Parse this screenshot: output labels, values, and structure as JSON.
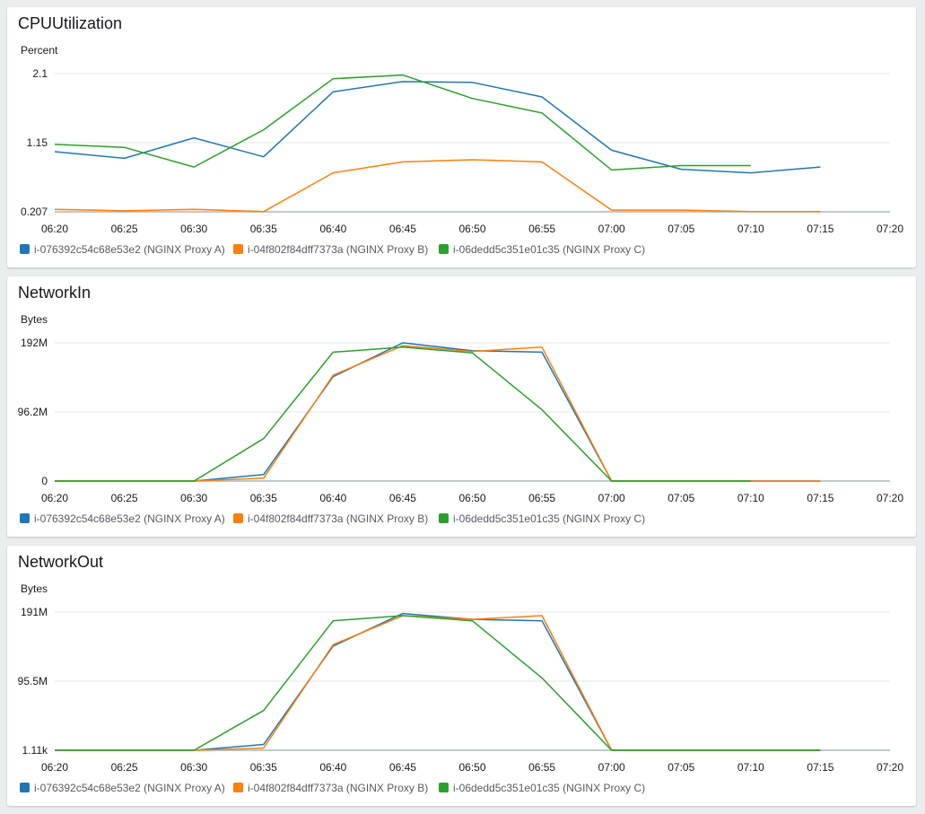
{
  "legend": [
    {
      "name": "i-076392c54c68e53e2 (NGINX Proxy A)",
      "color": "#1f77b4"
    },
    {
      "name": "i-04f802f84dff7373a (NGINX Proxy B)",
      "color": "#ff7f0e"
    },
    {
      "name": "i-06dedd5c351e01c35 (NGINX Proxy C)",
      "color": "#2ca02c"
    }
  ],
  "chart_data": [
    {
      "type": "line",
      "title": "CPUUtilization",
      "ylabel": "Percent",
      "xlabel": "",
      "x_ticks": [
        "06:20",
        "06:25",
        "06:30",
        "06:35",
        "06:40",
        "06:45",
        "06:50",
        "06:55",
        "07:00",
        "07:05",
        "07:10",
        "07:15",
        "07:20"
      ],
      "y_ticks": [
        "2.1",
        "1.15",
        "0.207"
      ],
      "ylim": [
        0.207,
        2.1
      ],
      "xlim": [
        0,
        60
      ],
      "series": [
        {
          "name": "i-076392c54c68e53e2 (NGINX Proxy A)",
          "color": "#1f77b4",
          "x": [
            0,
            5,
            10,
            15,
            20,
            25,
            30,
            35,
            40,
            45,
            50,
            55
          ],
          "values": [
            1.03,
            0.94,
            1.22,
            0.96,
            1.85,
            1.99,
            1.98,
            1.78,
            1.05,
            0.79,
            0.74,
            0.82
          ]
        },
        {
          "name": "i-04f802f84dff7373a (NGINX Proxy B)",
          "color": "#ff7f0e",
          "x": [
            0,
            5,
            10,
            15,
            20,
            25,
            30,
            35,
            40,
            45,
            50,
            55
          ],
          "values": [
            0.24,
            0.22,
            0.24,
            0.21,
            0.74,
            0.89,
            0.92,
            0.89,
            0.23,
            0.23,
            0.21,
            0.21
          ]
        },
        {
          "name": "i-06dedd5c351e01c35 (NGINX Proxy C)",
          "color": "#2ca02c",
          "x": [
            0,
            5,
            10,
            15,
            20,
            25,
            30,
            35,
            40,
            45,
            50
          ],
          "values": [
            1.13,
            1.09,
            0.82,
            1.33,
            2.03,
            2.08,
            1.76,
            1.56,
            0.78,
            0.84,
            0.84
          ]
        }
      ]
    },
    {
      "type": "line",
      "title": "NetworkIn",
      "ylabel": "Bytes",
      "xlabel": "",
      "x_ticks": [
        "06:20",
        "06:25",
        "06:30",
        "06:35",
        "06:40",
        "06:45",
        "06:50",
        "06:55",
        "07:00",
        "07:05",
        "07:10",
        "07:15",
        "07:20"
      ],
      "y_ticks": [
        "192M",
        "96.2M",
        "0"
      ],
      "ylim": [
        0,
        192
      ],
      "xlim": [
        0,
        60
      ],
      "series": [
        {
          "name": "i-076392c54c68e53e2 (NGINX Proxy A)",
          "color": "#1f77b4",
          "x": [
            0,
            5,
            10,
            15,
            20,
            25,
            30,
            35,
            40,
            45,
            50,
            55
          ],
          "values": [
            0,
            0,
            0,
            9,
            145,
            192,
            181,
            179,
            0,
            0,
            0,
            0
          ]
        },
        {
          "name": "i-04f802f84dff7373a (NGINX Proxy B)",
          "color": "#ff7f0e",
          "x": [
            0,
            5,
            10,
            15,
            20,
            25,
            30,
            35,
            40,
            45,
            50,
            55
          ],
          "values": [
            0,
            0,
            0,
            4,
            147,
            188,
            180,
            186,
            0,
            0,
            0,
            0
          ]
        },
        {
          "name": "i-06dedd5c351e01c35 (NGINX Proxy C)",
          "color": "#2ca02c",
          "x": [
            0,
            5,
            10,
            15,
            20,
            25,
            30,
            35,
            40,
            45,
            50
          ],
          "values": [
            0,
            0,
            0,
            59,
            179,
            186,
            178,
            99,
            0,
            0,
            0
          ]
        }
      ]
    },
    {
      "type": "line",
      "title": "NetworkOut",
      "ylabel": "Bytes",
      "xlabel": "",
      "x_ticks": [
        "06:20",
        "06:25",
        "06:30",
        "06:35",
        "06:40",
        "06:45",
        "06:50",
        "06:55",
        "07:00",
        "07:05",
        "07:10",
        "07:15",
        "07:20"
      ],
      "y_ticks": [
        "191M",
        "95.5M",
        "1.11k"
      ],
      "ylim": [
        0,
        191
      ],
      "xlim": [
        0,
        60
      ],
      "series": [
        {
          "name": "i-076392c54c68e53e2 (NGINX Proxy A)",
          "color": "#1f77b4",
          "x": [
            0,
            5,
            10,
            15,
            20,
            25,
            30,
            35,
            40,
            45,
            50,
            55
          ],
          "values": [
            0,
            0,
            0,
            8,
            144,
            189,
            181,
            179,
            0,
            0,
            0,
            0
          ]
        },
        {
          "name": "i-04f802f84dff7373a (NGINX Proxy B)",
          "color": "#ff7f0e",
          "x": [
            0,
            5,
            10,
            15,
            20,
            25,
            30,
            35,
            40,
            45,
            50,
            55
          ],
          "values": [
            0,
            0,
            0,
            3,
            146,
            186,
            181,
            186,
            0,
            0,
            0,
            0
          ]
        },
        {
          "name": "i-06dedd5c351e01c35 (NGINX Proxy C)",
          "color": "#2ca02c",
          "x": [
            0,
            5,
            10,
            15,
            20,
            25,
            30,
            35,
            40,
            45,
            50,
            55
          ],
          "values": [
            0,
            0,
            0,
            55,
            179,
            186,
            179,
            100,
            0,
            0,
            0,
            0
          ]
        }
      ]
    }
  ]
}
